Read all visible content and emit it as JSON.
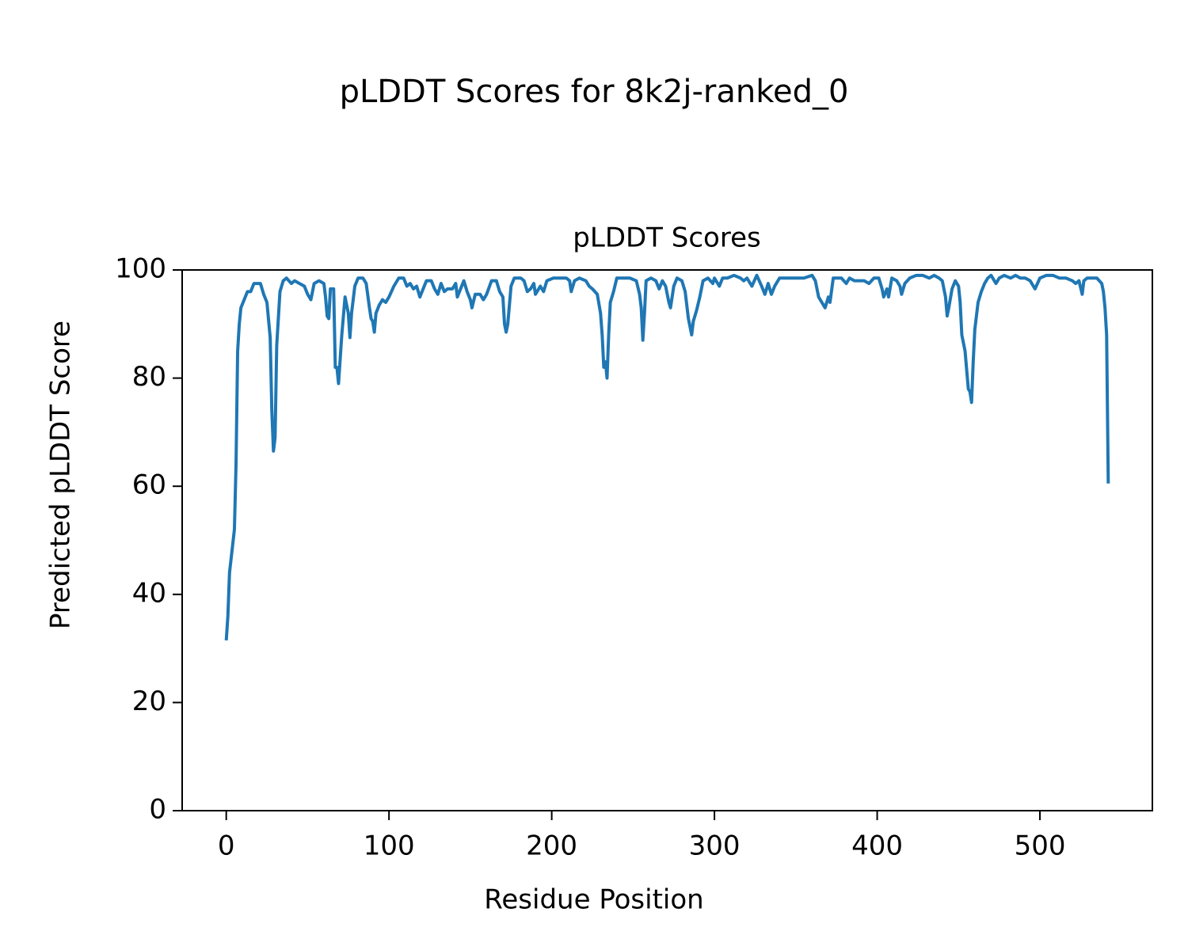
{
  "chart_data": {
    "type": "line",
    "title": "pLDDT Scores for 8k2j-ranked_0",
    "subtitle": "pLDDT Scores",
    "x_label": "Residue Position",
    "y_label": "Predicted pLDDT Score",
    "color": "#1f77b4",
    "xlim": [
      -27.1,
      569.1
    ],
    "ylim": [
      0,
      100
    ],
    "xticks": [
      0,
      100,
      200,
      300,
      400,
      500
    ],
    "yticks": [
      0,
      20,
      40,
      60,
      80,
      100
    ],
    "x": [
      0,
      1,
      2,
      5,
      6,
      7,
      8,
      9,
      11,
      13,
      15,
      17,
      19,
      21,
      23,
      25,
      27,
      28,
      29,
      30,
      31,
      33,
      35,
      37,
      40,
      42,
      45,
      48,
      50,
      52,
      54,
      57,
      60,
      61,
      62,
      63,
      64,
      66,
      67,
      68,
      69,
      71,
      73,
      75,
      76,
      77,
      79,
      81,
      84,
      86,
      88,
      89,
      90,
      91,
      92,
      94,
      96,
      98,
      100,
      103,
      106,
      109,
      111,
      113,
      115,
      117,
      119,
      121,
      123,
      126,
      128,
      130,
      132,
      134,
      136,
      139,
      141,
      142,
      144,
      146,
      148,
      150,
      151,
      153,
      156,
      158,
      160,
      163,
      166,
      168,
      170,
      171,
      172,
      173,
      175,
      177,
      181,
      183,
      185,
      187,
      189,
      190,
      193,
      195,
      197,
      201,
      205,
      209,
      211,
      212,
      214,
      217,
      221,
      223,
      225,
      228,
      230,
      231,
      232,
      233,
      234,
      235,
      236,
      238,
      240,
      244,
      248,
      252,
      254,
      255,
      256,
      257,
      258,
      261,
      264,
      266,
      268,
      270,
      272,
      273,
      275,
      277,
      280,
      282,
      284,
      285,
      286,
      287,
      289,
      291,
      293,
      296,
      299,
      300,
      303,
      305,
      308,
      312,
      316,
      318,
      320,
      323,
      326,
      329,
      331,
      333,
      335,
      337,
      340,
      345,
      350,
      355,
      360,
      362,
      364,
      366,
      368,
      370,
      371,
      373,
      378,
      381,
      383,
      386,
      389,
      392,
      395,
      398,
      401,
      403,
      404,
      406,
      407,
      409,
      412,
      414,
      415,
      417,
      420,
      424,
      428,
      432,
      435,
      438,
      440,
      442,
      443,
      444,
      446,
      448,
      450,
      451,
      452,
      454,
      456,
      457,
      458,
      459,
      460,
      462,
      464,
      466,
      468,
      470,
      472,
      473,
      475,
      478,
      482,
      485,
      488,
      491,
      494,
      497,
      500,
      504,
      508,
      512,
      516,
      520,
      522,
      524,
      526,
      527,
      529,
      532,
      535,
      538,
      539,
      540,
      541,
      542
    ],
    "values": [
      31.5,
      36,
      44,
      52,
      64,
      85,
      90,
      93,
      94.5,
      96,
      96,
      97.5,
      97.5,
      97.5,
      95.5,
      94,
      87.5,
      74,
      66.5,
      69,
      86,
      96,
      98,
      98.5,
      97.5,
      98,
      97.5,
      97,
      95.5,
      94.5,
      97.5,
      98,
      97.5,
      95,
      91.5,
      91,
      96.5,
      96.5,
      82,
      82,
      79,
      88,
      95,
      92,
      87.5,
      92,
      97,
      98.5,
      98.5,
      97.5,
      93,
      91,
      90.5,
      88.5,
      92,
      93.5,
      94.5,
      94,
      95,
      97,
      98.5,
      98.5,
      97,
      97.5,
      96.5,
      97,
      95,
      96.5,
      98,
      98,
      96.5,
      95.5,
      97.5,
      96,
      96.5,
      96.5,
      97.5,
      95,
      96.5,
      98,
      96,
      94.5,
      93,
      95.5,
      95.5,
      94.5,
      95.5,
      98,
      98,
      96,
      95,
      90,
      88.5,
      90,
      97,
      98.5,
      98.5,
      98,
      96,
      96.5,
      97.5,
      95.5,
      97,
      96,
      98,
      98.5,
      98.5,
      98.5,
      98,
      96,
      98,
      98.5,
      98,
      97,
      96.5,
      95.5,
      92,
      88,
      82,
      83,
      80,
      88,
      94,
      96,
      98.5,
      98.5,
      98.5,
      98,
      95.5,
      93,
      87,
      92,
      98,
      98.5,
      98,
      96.5,
      98,
      97,
      94,
      93,
      97,
      98.5,
      98,
      96,
      91,
      89.5,
      88,
      90.5,
      92.5,
      95,
      98,
      98.5,
      97.5,
      98.5,
      97,
      98.5,
      98.5,
      99,
      98.5,
      98,
      98.5,
      97,
      99,
      97,
      95.5,
      97.5,
      95.5,
      97,
      98.5,
      98.5,
      98.5,
      98.5,
      99,
      98,
      95,
      94,
      93,
      95,
      94,
      98.5,
      98.5,
      97.5,
      98.5,
      98,
      98,
      98,
      97.5,
      98.5,
      98.5,
      96.5,
      95,
      96.5,
      95,
      98.5,
      98,
      97,
      95.5,
      97.5,
      98.5,
      99,
      99,
      98.5,
      99,
      98.5,
      98,
      95,
      91.5,
      93,
      96.5,
      98,
      97,
      94,
      88,
      85,
      78,
      77.5,
      75.5,
      83,
      89,
      94,
      96,
      97.5,
      98.5,
      99,
      98,
      97.5,
      98.5,
      99,
      98.5,
      99,
      98.5,
      98.5,
      98,
      96.5,
      98.5,
      99,
      99,
      98.5,
      98.5,
      98,
      97.5,
      98,
      95.5,
      98,
      98.5,
      98.5,
      98.5,
      97.5,
      96,
      93,
      88,
      60.5
    ]
  }
}
